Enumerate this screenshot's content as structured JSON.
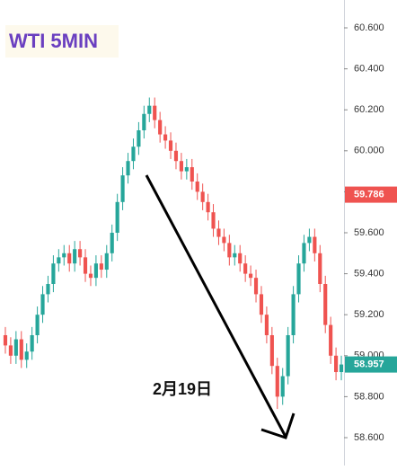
{
  "chart_data": {
    "type": "candlestick",
    "title": "WTI 5MIN",
    "annotation": "2月19日",
    "ylim": [
      58.464,
      60.736
    ],
    "yticks": [
      {
        "value": 58.6,
        "label": "58.600"
      },
      {
        "value": 58.8,
        "label": "58.800"
      },
      {
        "value": 59.0,
        "label": "59.000"
      },
      {
        "value": 59.2,
        "label": "59.200"
      },
      {
        "value": 59.4,
        "label": "59.400"
      },
      {
        "value": 59.6,
        "label": "59.600"
      },
      {
        "value": 59.8,
        "label": "59.800"
      },
      {
        "value": 60.0,
        "label": "60.000"
      },
      {
        "value": 60.2,
        "label": "60.200"
      },
      {
        "value": 60.4,
        "label": "60.400"
      },
      {
        "value": 60.6,
        "label": "60.600"
      }
    ],
    "up_color": "#26a69a",
    "down_color": "#ef5350",
    "open": [
      59.1,
      59.05,
      59.0,
      59.08,
      58.98,
      59.02,
      59.1,
      59.2,
      59.3,
      59.35,
      59.45,
      59.48,
      59.5,
      59.45,
      59.52,
      59.48,
      59.4,
      59.38,
      59.45,
      59.42,
      59.5,
      59.6,
      59.75,
      59.88,
      59.95,
      60.02,
      60.1,
      60.18,
      60.22,
      60.15,
      60.08,
      60.05,
      60.0,
      59.95,
      59.9,
      59.92,
      59.85,
      59.8,
      59.75,
      59.7,
      59.62,
      59.58,
      59.55,
      59.48,
      59.5,
      59.45,
      59.4,
      59.38,
      59.3,
      59.2,
      59.1,
      58.95,
      58.8,
      58.9,
      59.1,
      59.3,
      59.45,
      59.55,
      59.58,
      59.5,
      59.35,
      59.15,
      59.0,
      58.92
    ],
    "high": [
      59.14,
      59.09,
      59.12,
      59.12,
      59.06,
      59.14,
      59.24,
      59.34,
      59.39,
      59.49,
      59.52,
      59.54,
      59.54,
      59.56,
      59.56,
      59.52,
      59.44,
      59.49,
      59.49,
      59.54,
      59.64,
      59.79,
      59.92,
      59.99,
      60.06,
      60.14,
      60.22,
      60.26,
      60.26,
      60.19,
      60.12,
      60.09,
      60.04,
      59.99,
      59.96,
      59.96,
      59.89,
      59.84,
      59.79,
      59.74,
      59.66,
      59.62,
      59.59,
      59.54,
      59.54,
      59.49,
      59.44,
      59.42,
      59.34,
      59.24,
      59.14,
      58.99,
      58.94,
      59.14,
      59.34,
      59.49,
      59.59,
      59.62,
      59.62,
      59.54,
      59.39,
      59.19,
      59.04,
      59.0
    ],
    "low": [
      59.01,
      58.96,
      58.96,
      58.94,
      58.94,
      58.98,
      59.06,
      59.16,
      59.26,
      59.31,
      59.41,
      59.44,
      59.41,
      59.41,
      59.44,
      59.36,
      59.34,
      59.34,
      59.38,
      59.38,
      59.46,
      59.56,
      59.71,
      59.84,
      59.91,
      59.98,
      60.06,
      60.14,
      60.11,
      60.04,
      60.01,
      59.96,
      59.91,
      59.86,
      59.86,
      59.81,
      59.76,
      59.71,
      59.66,
      59.58,
      59.54,
      59.51,
      59.44,
      59.44,
      59.41,
      59.36,
      59.34,
      59.26,
      59.16,
      59.06,
      58.91,
      58.74,
      58.76,
      58.86,
      59.06,
      59.26,
      59.41,
      59.51,
      59.46,
      59.31,
      59.11,
      58.96,
      58.88,
      58.88
    ],
    "close": [
      59.05,
      59.0,
      59.08,
      58.98,
      59.02,
      59.1,
      59.2,
      59.3,
      59.35,
      59.45,
      59.48,
      59.5,
      59.45,
      59.52,
      59.48,
      59.4,
      59.38,
      59.45,
      59.42,
      59.5,
      59.6,
      59.75,
      59.88,
      59.95,
      60.02,
      60.1,
      60.18,
      60.22,
      60.15,
      60.08,
      60.05,
      60.0,
      59.95,
      59.9,
      59.92,
      59.85,
      59.8,
      59.75,
      59.7,
      59.62,
      59.58,
      59.55,
      59.48,
      59.5,
      59.45,
      59.4,
      59.38,
      59.3,
      59.2,
      59.1,
      58.95,
      58.8,
      58.9,
      59.1,
      59.3,
      59.45,
      59.55,
      59.58,
      59.5,
      59.35,
      59.15,
      59.0,
      58.92,
      58.957
    ],
    "price_tags": [
      {
        "value": 59.786,
        "label": "59.786",
        "color": "#ef5350"
      },
      {
        "value": 58.957,
        "label": "58.957",
        "color": "#26a69a"
      }
    ]
  }
}
